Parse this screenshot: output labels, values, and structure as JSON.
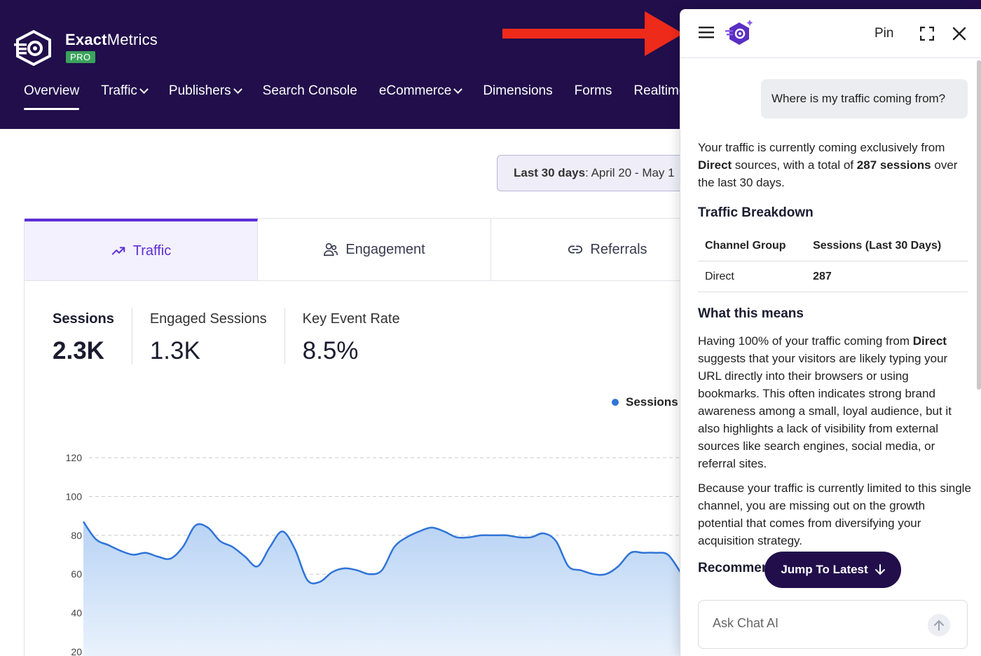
{
  "brand": {
    "name_bold": "Exact",
    "name_rest": "Metrics",
    "badge": "PRO"
  },
  "nav": {
    "items": [
      {
        "label": "Overview",
        "dropdown": false,
        "active": true
      },
      {
        "label": "Traffic",
        "dropdown": true,
        "active": false
      },
      {
        "label": "Publishers",
        "dropdown": true,
        "active": false
      },
      {
        "label": "Search Console",
        "dropdown": false,
        "active": false
      },
      {
        "label": "eCommerce",
        "dropdown": true,
        "active": false
      },
      {
        "label": "Dimensions",
        "dropdown": false,
        "active": false
      },
      {
        "label": "Forms",
        "dropdown": false,
        "active": false
      },
      {
        "label": "Realtime",
        "dropdown": false,
        "active": false
      }
    ]
  },
  "date_range": {
    "prefix": "Last 30 days",
    "range": ": April 20 - May 1"
  },
  "tabs": [
    {
      "label": "Traffic",
      "icon": "trend-up-icon"
    },
    {
      "label": "Engagement",
      "icon": "users-icon"
    },
    {
      "label": "Referrals",
      "icon": "link-icon"
    }
  ],
  "metrics": [
    {
      "label": "Sessions",
      "value": "2.3K"
    },
    {
      "label": "Engaged Sessions",
      "value": "1.3K"
    },
    {
      "label": "Key Event Rate",
      "value": "8.5%"
    }
  ],
  "chart_data": {
    "type": "area",
    "legend": "top-right",
    "series": [
      {
        "name": "Sessions",
        "color": "#2f74d8",
        "values": [
          87,
          78,
          75,
          72,
          70,
          71,
          69,
          68,
          74,
          85,
          84,
          77,
          74,
          69,
          64,
          74,
          82,
          73,
          57,
          56,
          61,
          63,
          62,
          60,
          62,
          74,
          79,
          82,
          84,
          82,
          79,
          79,
          80,
          80,
          80,
          79,
          79,
          81,
          77,
          64,
          62,
          60,
          60,
          64,
          71,
          71,
          71,
          70,
          61
        ]
      }
    ],
    "y_ticks": [
      "120",
      "100",
      "80",
      "60",
      "40",
      "20"
    ],
    "ylim": [
      20,
      120
    ],
    "grid": true
  },
  "chat": {
    "pin_label": "Pin",
    "user_message": "Where is my traffic coming from?",
    "intro": {
      "p1": "Your traffic is currently coming exclusively from ",
      "b1": "Direct",
      "p2": " sources, with a total of ",
      "b2": "287 sessions",
      "p3": " over the last 30 days."
    },
    "breakdown_title": "Traffic Breakdown",
    "table": {
      "headers": [
        "Channel Group",
        "Sessions (Last 30 Days)"
      ],
      "rows": [
        [
          "Direct",
          "287"
        ]
      ]
    },
    "means_title": "What this means",
    "means_p1a": "Having 100% of your traffic coming from ",
    "means_p1b": "Direct",
    "means_p1c": " suggests that your visitors are likely typing your URL directly into their browsers or using bookmarks. This often indicates strong brand awareness among a small, loyal audience, but it also highlights a lack of visibility from external sources like search engines, social media, or referral sites.",
    "means_p2": "Because your traffic is currently limited to this single channel, you are missing out on the growth potential that comes from diversifying your acquisition strategy.",
    "recommend_title": "Recommen",
    "jump_label": "Jump To Latest",
    "input_placeholder": "Ask Chat AI"
  }
}
